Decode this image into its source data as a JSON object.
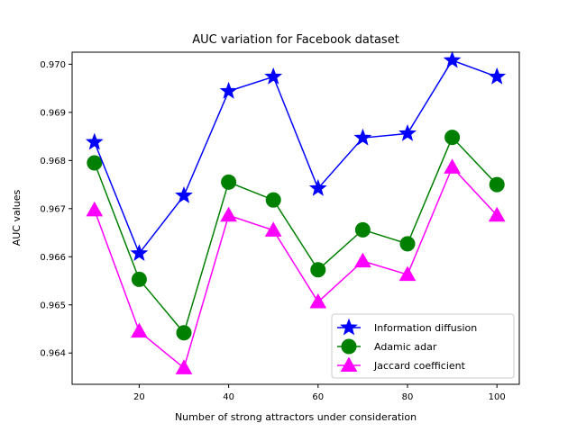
{
  "chart_data": {
    "type": "line",
    "title": "AUC variation for Facebook dataset",
    "xlabel": "Number of strong attractors under consideration",
    "ylabel": "AUC values",
    "x": [
      10,
      20,
      30,
      40,
      50,
      60,
      70,
      80,
      90,
      100
    ],
    "xlim": [
      5,
      105
    ],
    "ylim": [
      0.96335,
      0.97025
    ],
    "xticks": [
      20,
      40,
      60,
      80,
      100
    ],
    "yticks": [
      0.964,
      0.965,
      0.966,
      0.967,
      0.968,
      0.969,
      0.97
    ],
    "ytick_labels": [
      "0.964",
      "0.965",
      "0.966",
      "0.967",
      "0.968",
      "0.969",
      "0.970"
    ],
    "grid": false,
    "legend_position": "bottom-right",
    "series": [
      {
        "name": "Information diffusion",
        "color": "#0000ff",
        "marker": "star",
        "values": [
          0.96838,
          0.96607,
          0.96727,
          0.96944,
          0.96974,
          0.96742,
          0.96847,
          0.96856,
          0.97008,
          0.96974
        ]
      },
      {
        "name": "Adamic adar",
        "color": "#008000",
        "marker": "circle",
        "values": [
          0.96795,
          0.96553,
          0.96442,
          0.96755,
          0.96718,
          0.96573,
          0.96656,
          0.96627,
          0.96848,
          0.9675
        ]
      },
      {
        "name": "Jaccard coefficient",
        "color": "#ff00ff",
        "marker": "triangle",
        "values": [
          0.96697,
          0.96445,
          0.96369,
          0.96686,
          0.96655,
          0.96506,
          0.96591,
          0.96563,
          0.96786,
          0.96686
        ]
      }
    ]
  }
}
